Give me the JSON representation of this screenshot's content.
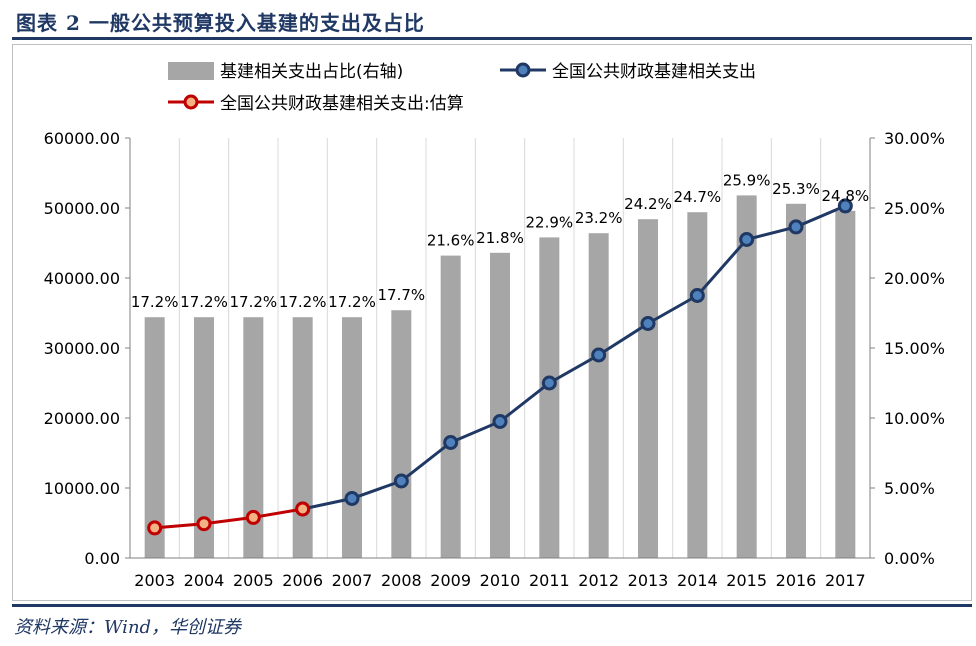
{
  "header": {
    "title": "图表 2   一般公共预算投入基建的支出及占比"
  },
  "footer": {
    "source": "资料来源：Wind，华创证券"
  },
  "colors": {
    "navy": "#1F3864",
    "bar": "#A6A6A6",
    "line": "#1F3864",
    "estimate": "#C00000",
    "marker_fill": "#4F81BD",
    "estimate_marker_fill": "#F4B183"
  },
  "chart_data": {
    "type": "bar+line",
    "categories": [
      "2003",
      "2004",
      "2005",
      "2006",
      "2007",
      "2008",
      "2009",
      "2010",
      "2011",
      "2012",
      "2013",
      "2014",
      "2015",
      "2016",
      "2017"
    ],
    "bar_series": {
      "name": "基建相关支出占比(右轴)",
      "axis": "right",
      "values": [
        17.2,
        17.2,
        17.2,
        17.2,
        17.2,
        17.7,
        21.6,
        21.8,
        22.9,
        23.2,
        24.2,
        24.7,
        25.9,
        25.3,
        24.8
      ],
      "data_labels": [
        "17.2%",
        "17.2%",
        "17.2%",
        "17.2%",
        "17.2%",
        "17.7%",
        "21.6%",
        "21.8%",
        "22.9%",
        "23.2%",
        "24.2%",
        "24.7%",
        "25.9%",
        "25.3%",
        "24.8%"
      ]
    },
    "line_series": [
      {
        "name": "全国公共财政基建相关支出",
        "axis": "left",
        "values": [
          null,
          null,
          null,
          7000,
          8500,
          11000,
          16500,
          19500,
          25000,
          29000,
          33500,
          37500,
          45500,
          47300,
          50300
        ]
      },
      {
        "name": "全国公共财政基建相关支出:估算",
        "axis": "left",
        "values": [
          4300,
          4900,
          5800,
          7000,
          null,
          null,
          null,
          null,
          null,
          null,
          null,
          null,
          null,
          null,
          null
        ]
      }
    ],
    "y_left": {
      "ylim": [
        0,
        60000
      ],
      "ticks": [
        "0.00",
        "10000.00",
        "20000.00",
        "30000.00",
        "40000.00",
        "50000.00",
        "60000.00"
      ]
    },
    "y_right": {
      "ylim": [
        0,
        30
      ],
      "ticks": [
        "0.00%",
        "5.00%",
        "10.00%",
        "15.00%",
        "20.00%",
        "25.00%",
        "30.00%"
      ]
    },
    "legend": {
      "position": "top",
      "items": [
        "基建相关支出占比(右轴)",
        "全国公共财政基建相关支出",
        "全国公共财政基建相关支出:估算"
      ]
    },
    "grid": {
      "vertical": true,
      "horizontal": false
    }
  }
}
